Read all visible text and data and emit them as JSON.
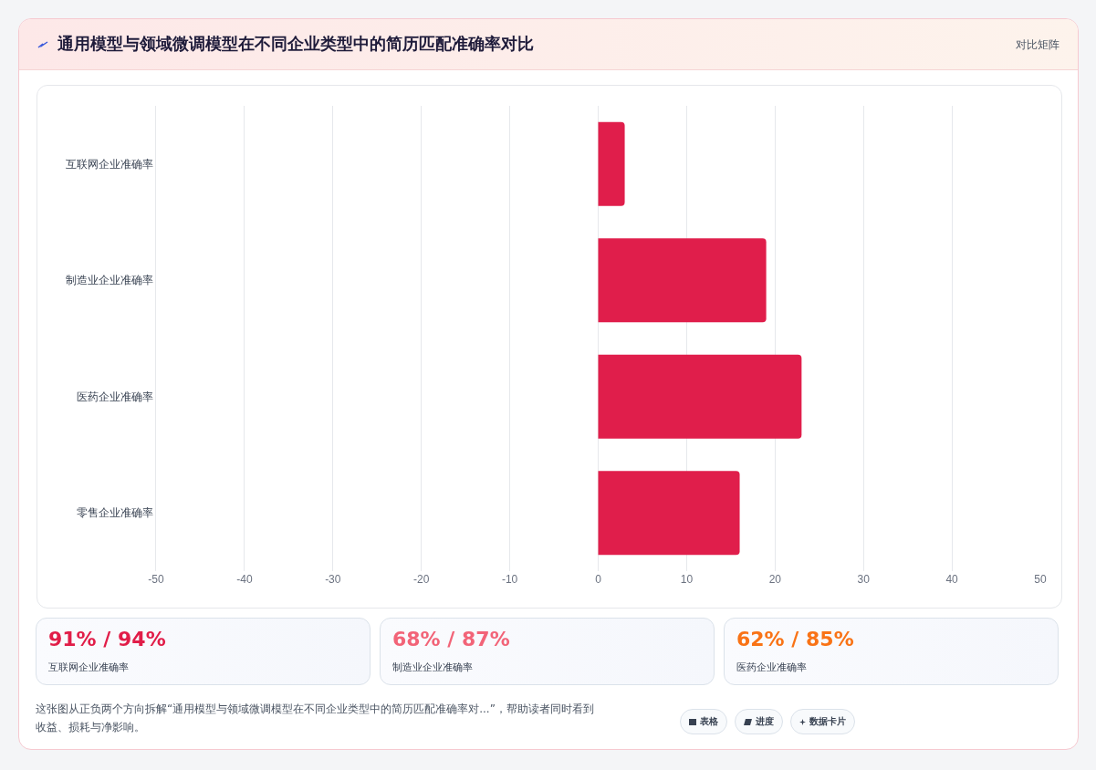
{
  "chart_data": [
    {
      "type": "bar",
      "title": "通用模型与领域微调模型在不同企业类型中的简历匹配准确率对比",
      "orientation": "horizontal",
      "categories": [
        "互联网企业准确率",
        "制造业企业准确率",
        "医药企业准确率",
        "零售企业准确率"
      ],
      "values": [
        3,
        19,
        23,
        16
      ],
      "color": "#e01e4b",
      "xlim": [
        -50,
        50
      ],
      "xticks": [
        -50,
        -40,
        -30,
        -20,
        -10,
        0,
        10,
        20,
        30,
        40,
        50
      ],
      "grid": "x",
      "legend": false,
      "annotations": [
        "对比矩阵",
        "这张图从正负两个方向拆解“通用模型与领域微调模型在不同企业类型中的简历匹配准确率对...”，帮助读者同时看到收益、损耗与净影响。",
        "表格",
        "进度",
        "数据卡片"
      ]
    },
    {
      "type": "other",
      "title": "91% / 94%",
      "subtitle": "互联网企业准确率",
      "color": "#e11d48"
    },
    {
      "type": "other",
      "title": "68% / 87%",
      "subtitle": "制造业企业准确率",
      "color": "#f26478"
    },
    {
      "type": "other",
      "title": "62% / 85%",
      "subtitle": "医药企业准确率",
      "color": "#f97316"
    }
  ]
}
